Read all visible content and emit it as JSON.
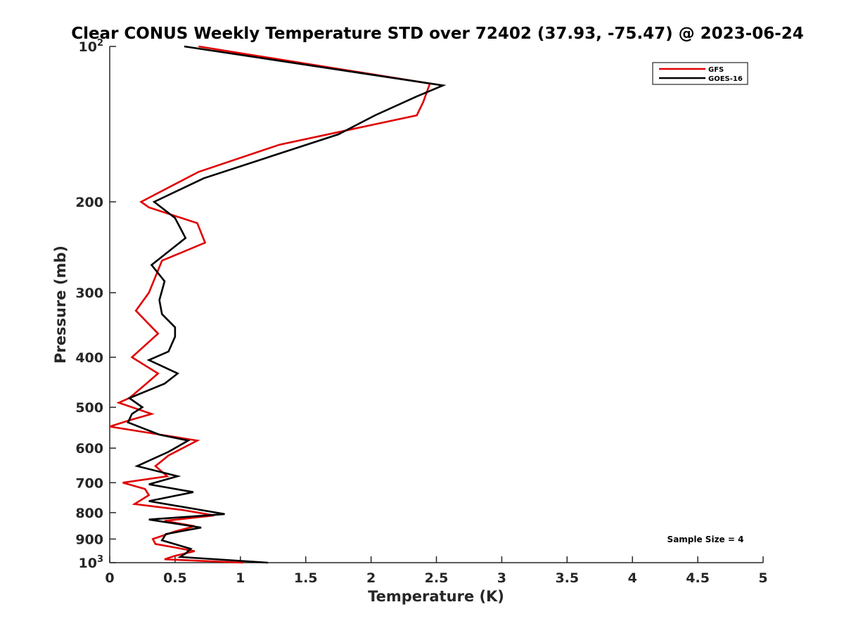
{
  "chart_data": {
    "type": "line",
    "title": "Clear CONUS Weekly Temperature STD over 72402 (37.93, -75.47) @ 2023-06-24",
    "xlabel": "Temperature (K)",
    "ylabel": "Pressure (mb)",
    "xlim": [
      0,
      5
    ],
    "ylim": [
      100,
      1000
    ],
    "yscale": "log",
    "y_reversed": true,
    "grid": false,
    "legend_position": "top-right",
    "xticks": [
      0,
      0.5,
      1,
      1.5,
      2,
      2.5,
      3,
      3.5,
      4,
      4.5,
      5
    ],
    "xtick_labels": [
      "0",
      "0.5",
      "1",
      "1.5",
      "2",
      "2.5",
      "3",
      "3.5",
      "4",
      "4.5",
      "5"
    ],
    "yticks": [
      {
        "value": 100,
        "base": "10",
        "exp": "2",
        "label": ""
      },
      {
        "value": 200,
        "label": "200"
      },
      {
        "value": 300,
        "label": "300"
      },
      {
        "value": 400,
        "label": "400"
      },
      {
        "value": 500,
        "label": "500"
      },
      {
        "value": 600,
        "label": "600"
      },
      {
        "value": 700,
        "label": "700"
      },
      {
        "value": 800,
        "label": "800"
      },
      {
        "value": 900,
        "label": "900"
      },
      {
        "value": 1000,
        "base": "10",
        "exp": "3",
        "label": ""
      }
    ],
    "annotation": "Sample Size = 4",
    "series": [
      {
        "name": "GFS",
        "color": "#e00000",
        "points": [
          [
            0.68,
            100
          ],
          [
            2.45,
            118
          ],
          [
            2.4,
            128
          ],
          [
            2.35,
            136
          ],
          [
            1.3,
            155
          ],
          [
            0.68,
            175
          ],
          [
            0.24,
            200
          ],
          [
            0.3,
            205
          ],
          [
            0.67,
            220
          ],
          [
            0.73,
            240
          ],
          [
            0.4,
            260
          ],
          [
            0.3,
            300
          ],
          [
            0.2,
            325
          ],
          [
            0.37,
            360
          ],
          [
            0.17,
            400
          ],
          [
            0.37,
            430
          ],
          [
            0.28,
            450
          ],
          [
            0.15,
            480
          ],
          [
            0.07,
            490
          ],
          [
            0.32,
            515
          ],
          [
            0.15,
            530
          ],
          [
            0.0,
            545
          ],
          [
            0.67,
            580
          ],
          [
            0.45,
            620
          ],
          [
            0.35,
            650
          ],
          [
            0.44,
            680
          ],
          [
            0.1,
            700
          ],
          [
            0.27,
            720
          ],
          [
            0.3,
            740
          ],
          [
            0.19,
            770
          ],
          [
            0.55,
            790
          ],
          [
            0.8,
            810
          ],
          [
            0.42,
            830
          ],
          [
            0.65,
            850
          ],
          [
            0.5,
            870
          ],
          [
            0.33,
            900
          ],
          [
            0.35,
            920
          ],
          [
            0.65,
            950
          ],
          [
            0.5,
            970
          ],
          [
            0.42,
            985
          ],
          [
            1.02,
            1000
          ]
        ]
      },
      {
        "name": "GOES-16",
        "color": "#000000",
        "points": [
          [
            0.57,
            100
          ],
          [
            2.55,
            119
          ],
          [
            2.35,
            125
          ],
          [
            2.03,
            136
          ],
          [
            1.75,
            148
          ],
          [
            0.72,
            180
          ],
          [
            0.34,
            200
          ],
          [
            0.5,
            215
          ],
          [
            0.58,
            235
          ],
          [
            0.32,
            265
          ],
          [
            0.42,
            285
          ],
          [
            0.38,
            310
          ],
          [
            0.4,
            330
          ],
          [
            0.5,
            350
          ],
          [
            0.5,
            365
          ],
          [
            0.45,
            390
          ],
          [
            0.3,
            405
          ],
          [
            0.52,
            430
          ],
          [
            0.42,
            450
          ],
          [
            0.15,
            480
          ],
          [
            0.25,
            500
          ],
          [
            0.17,
            515
          ],
          [
            0.14,
            535
          ],
          [
            0.38,
            565
          ],
          [
            0.6,
            580
          ],
          [
            0.45,
            610
          ],
          [
            0.21,
            650
          ],
          [
            0.52,
            680
          ],
          [
            0.3,
            705
          ],
          [
            0.64,
            730
          ],
          [
            0.3,
            760
          ],
          [
            0.88,
            805
          ],
          [
            0.3,
            825
          ],
          [
            0.7,
            855
          ],
          [
            0.43,
            880
          ],
          [
            0.4,
            905
          ],
          [
            0.62,
            940
          ],
          [
            0.58,
            960
          ],
          [
            0.54,
            975
          ],
          [
            1.21,
            1000
          ]
        ]
      }
    ]
  }
}
